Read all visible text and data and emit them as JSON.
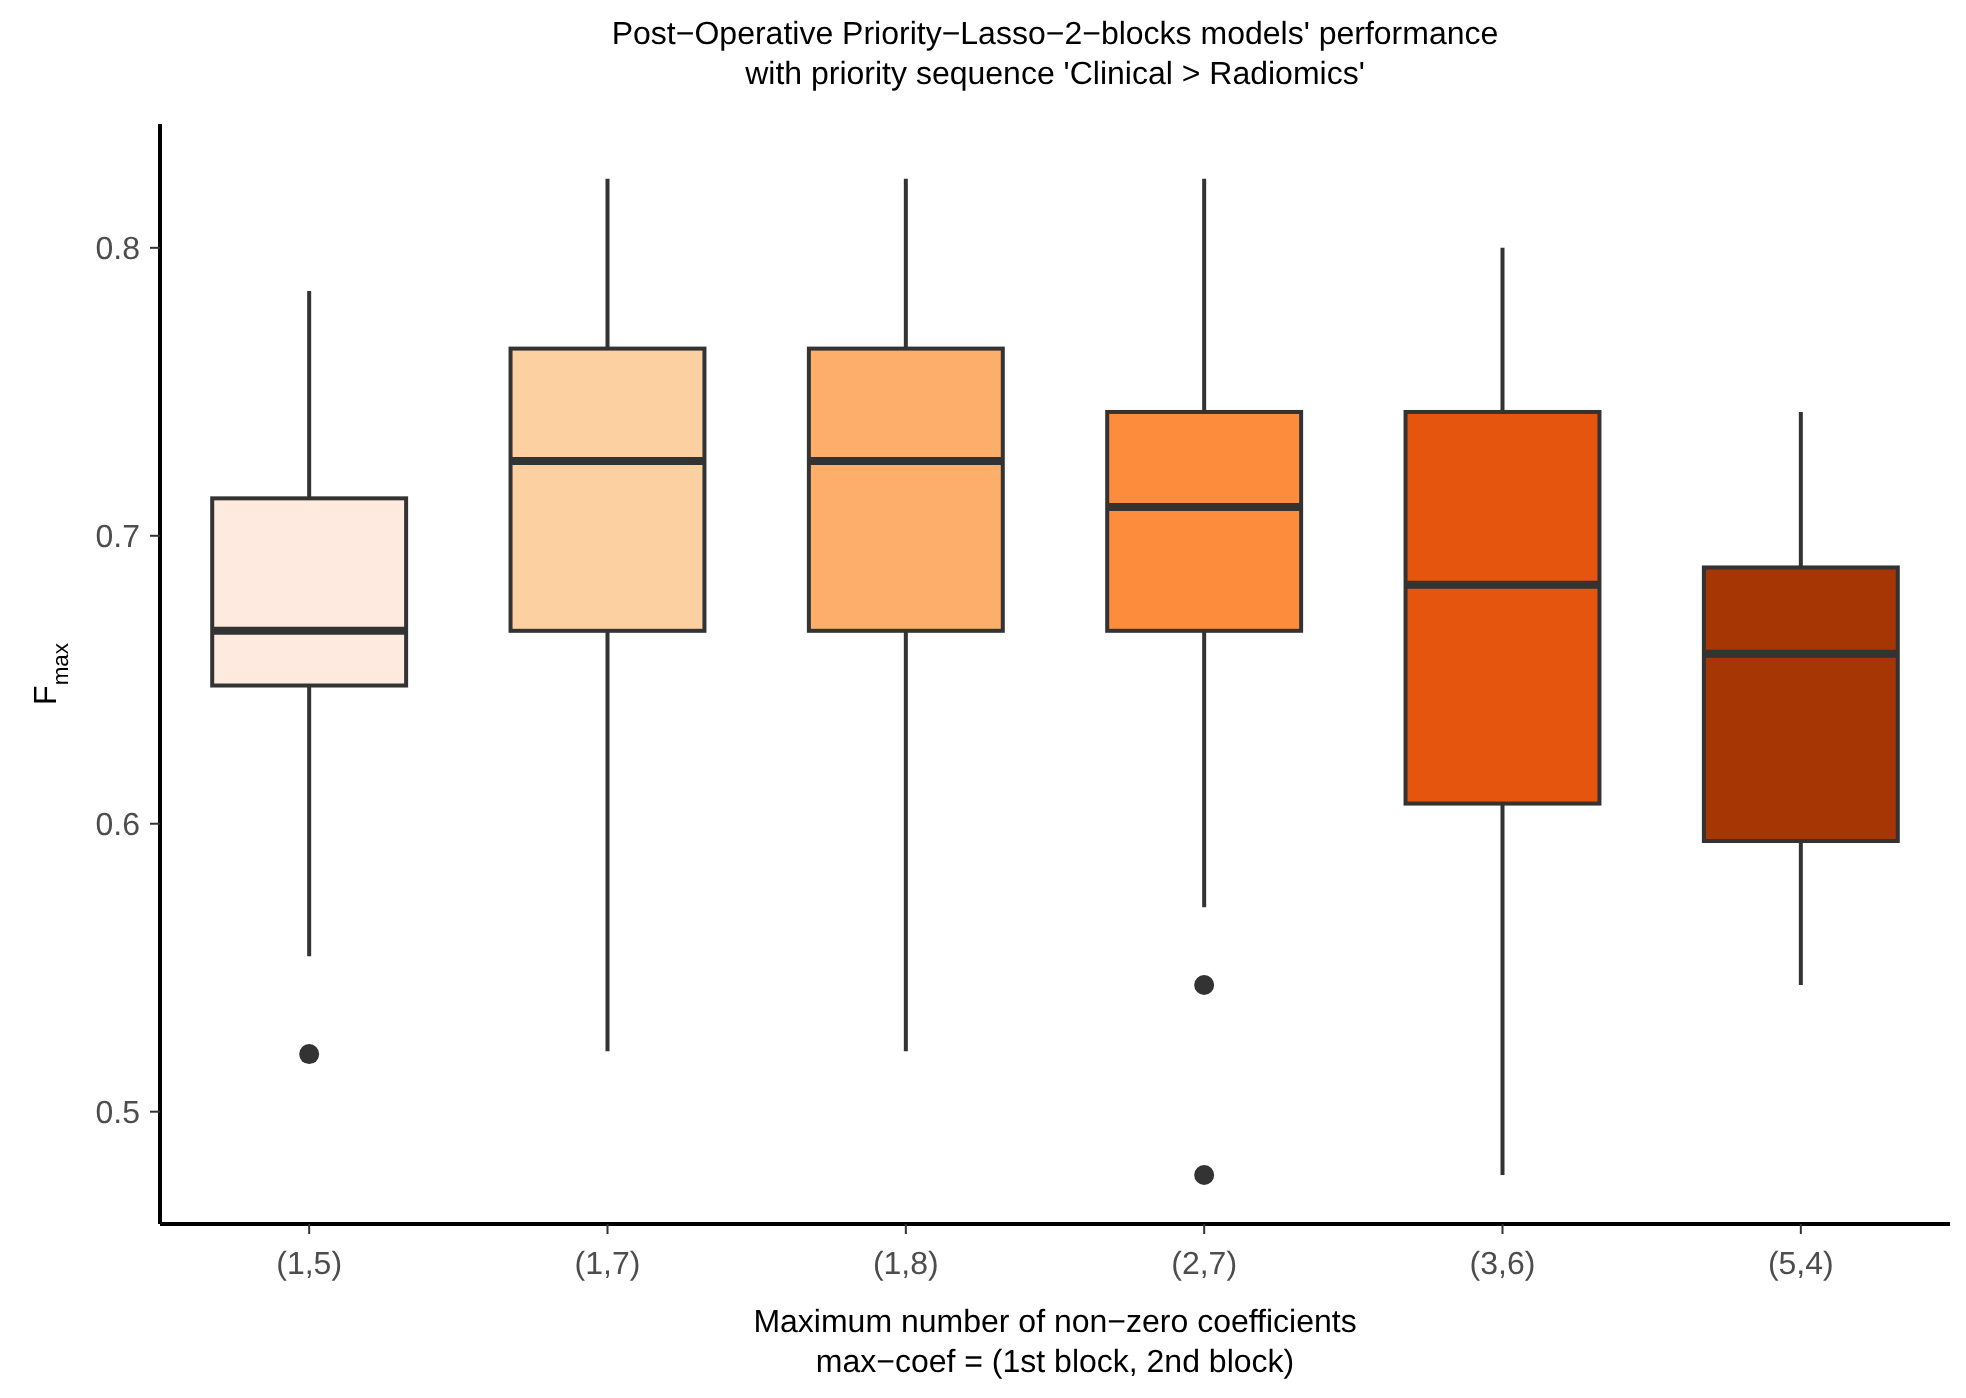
{
  "chart_data": {
    "type": "box",
    "title": "Post−Operative Priority−Lasso−2−blocks models' performance\nwith priority sequence 'Clinical > Radiomics'",
    "xlabel": "Maximum number of non−zero coefficients\nmax−coef = (1st block, 2nd block)",
    "ylabel": "F$_{max}$",
    "categories": [
      "(1,5)",
      "(1,7)",
      "(1,8)",
      "(2,7)",
      "(3,6)",
      "(5,4)"
    ],
    "colors": [
      "#feeade",
      "#fdd0a2",
      "#fdae6b",
      "#fd8d3c",
      "#e6550d",
      "#a63603"
    ],
    "boxes": [
      {
        "low": 0.554,
        "q1": 0.648,
        "median": 0.667,
        "q3": 0.713,
        "high": 0.785,
        "outliers": [
          0.52
        ]
      },
      {
        "low": 0.521,
        "q1": 0.667,
        "median": 0.726,
        "q3": 0.765,
        "high": 0.824
      },
      {
        "low": 0.521,
        "q1": 0.667,
        "median": 0.726,
        "q3": 0.765,
        "high": 0.824
      },
      {
        "low": 0.571,
        "q1": 0.667,
        "median": 0.71,
        "q3": 0.743,
        "high": 0.824,
        "outliers": [
          0.544,
          0.478
        ]
      },
      {
        "low": 0.478,
        "q1": 0.607,
        "median": 0.683,
        "q3": 0.743,
        "high": 0.8
      },
      {
        "low": 0.544,
        "q1": 0.594,
        "median": 0.659,
        "q3": 0.689,
        "high": 0.743
      }
    ],
    "ylim": [
      0.461,
      0.843
    ],
    "yticks": [
      0.5,
      0.6,
      0.7,
      0.8
    ],
    "grid": false
  }
}
